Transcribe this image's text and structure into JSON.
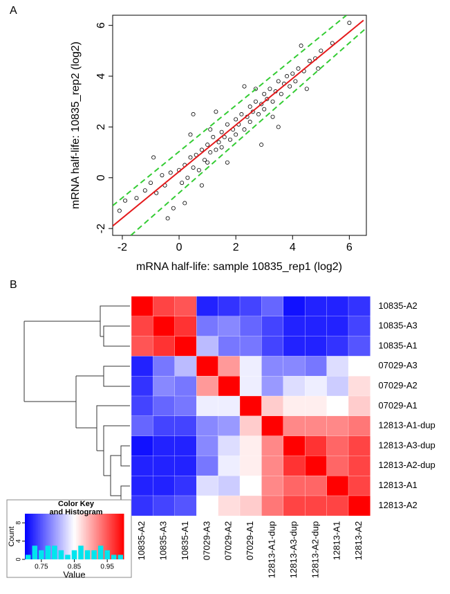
{
  "chart_data": [
    {
      "type": "scatter",
      "panel_label": "A",
      "xlabel": "mRNA half-life: sample 10835_rep1 (log2)",
      "ylabel": "mRNA half-life: 10835_rep2 (log2)",
      "xlim": [
        -2.34,
        6.6
      ],
      "ylim": [
        -2.27,
        6.4
      ],
      "xticks": [
        -2,
        0,
        2,
        4,
        6
      ],
      "yticks": [
        -2,
        0,
        2,
        4,
        6
      ],
      "color": "#000000",
      "x": [
        -1.9,
        -1.5,
        -1.2,
        -1.0,
        -0.8,
        -0.6,
        -0.5,
        -0.3,
        -0.2,
        0,
        0.1,
        0.2,
        0.3,
        0.4,
        0.5,
        0.6,
        0.7,
        0.8,
        0.9,
        1.0,
        1.0,
        1.1,
        1.2,
        1.3,
        1.4,
        1.5,
        1.5,
        1.6,
        1.7,
        1.8,
        1.9,
        2.0,
        2.0,
        2.1,
        2.2,
        2.3,
        2.4,
        2.5,
        2.5,
        2.6,
        2.7,
        2.8,
        2.9,
        3.0,
        3.0,
        3.1,
        3.2,
        3.3,
        3.4,
        3.5,
        3.6,
        3.7,
        3.8,
        3.9,
        4.0,
        4.1,
        4.2,
        4.4,
        4.6,
        4.8,
        5.0,
        5.4,
        6.0,
        0.5,
        1.3,
        2.9,
        3.5,
        -0.4,
        0.2,
        1.7,
        0.8,
        2.3,
        4.3,
        1.1,
        2.7,
        3.3,
        4.5,
        -2.1,
        4.9,
        0.4,
        -0.9
      ],
      "y": [
        -0.9,
        -0.8,
        -0.5,
        -0.2,
        -0.6,
        0.1,
        -0.3,
        0.2,
        -1.2,
        0.3,
        -0.2,
        0.5,
        0.0,
        0.8,
        0.4,
        0.9,
        0.3,
        1.1,
        0.7,
        1.3,
        0.6,
        1.0,
        1.6,
        1.1,
        1.4,
        1.8,
        1.2,
        1.6,
        2.1,
        1.5,
        1.9,
        2.3,
        1.7,
        2.1,
        2.5,
        1.9,
        2.4,
        2.8,
        2.2,
        2.6,
        3.0,
        2.5,
        2.9,
        3.3,
        2.7,
        3.1,
        3.5,
        3.0,
        3.4,
        3.8,
        3.3,
        3.7,
        4.0,
        3.6,
        4.1,
        3.8,
        4.3,
        4.2,
        4.6,
        4.7,
        5.0,
        5.3,
        6.1,
        2.5,
        2.6,
        1.3,
        2.0,
        -1.6,
        -1.0,
        0.6,
        -0.3,
        3.6,
        5.2,
        1.9,
        3.5,
        2.4,
        3.5,
        -1.3,
        4.3,
        1.7,
        0.8
      ],
      "lines": [
        {
          "color": "#e41a1c",
          "dash": false,
          "x": [
            -2.34,
            6.5
          ],
          "y": [
            -1.9,
            6.2
          ]
        },
        {
          "color": "#33cc33",
          "dash": true,
          "x": [
            -2.34,
            5.9
          ],
          "y": [
            -1.1,
            6.4
          ]
        },
        {
          "color": "#33cc33",
          "dash": true,
          "x": [
            -1.7,
            6.6
          ],
          "y": [
            -2.27,
            5.9
          ]
        }
      ]
    },
    {
      "type": "heatmap",
      "panel_label": "B",
      "row_labels": [
        "10835-A2",
        "10835-A3",
        "10835-A1",
        "07029-A3",
        "07029-A2",
        "07029-A1",
        "12813-A1-dup",
        "12813-A3-dup",
        "12813-A2-dup",
        "12813-A1",
        "12813-A2"
      ],
      "col_labels": [
        "10835-A2",
        "10835-A3",
        "10835-A1",
        "07029-A3",
        "07029-A2",
        "07029-A1",
        "12813-A1-dup",
        "12813-A3-dup",
        "12813-A2-dup",
        "12813-A1",
        "12813-A2"
      ],
      "values": [
        [
          1,
          0.96,
          0.95,
          0.72,
          0.73,
          0.74,
          0.76,
          0.71,
          0.72,
          0.72,
          0.73
        ],
        [
          0.96,
          1,
          0.97,
          0.77,
          0.78,
          0.76,
          0.74,
          0.72,
          0.72,
          0.72,
          0.74
        ],
        [
          0.95,
          0.97,
          1,
          0.81,
          0.77,
          0.77,
          0.74,
          0.72,
          0.72,
          0.73,
          0.75
        ],
        [
          0.72,
          0.77,
          0.81,
          1,
          0.91,
          0.84,
          0.78,
          0.78,
          0.77,
          0.83,
          0.85
        ],
        [
          0.73,
          0.78,
          0.77,
          0.91,
          1,
          0.84,
          0.79,
          0.83,
          0.84,
          0.82,
          0.87
        ],
        [
          0.74,
          0.76,
          0.77,
          0.84,
          0.84,
          1,
          0.88,
          0.86,
          0.86,
          0.85,
          0.88
        ],
        [
          0.76,
          0.74,
          0.74,
          0.78,
          0.79,
          0.88,
          1,
          0.92,
          0.92,
          0.92,
          0.93
        ],
        [
          0.71,
          0.72,
          0.72,
          0.78,
          0.83,
          0.86,
          0.92,
          1,
          0.97,
          0.94,
          0.96
        ],
        [
          0.72,
          0.72,
          0.72,
          0.77,
          0.84,
          0.86,
          0.92,
          0.97,
          1,
          0.94,
          0.96
        ],
        [
          0.72,
          0.72,
          0.73,
          0.83,
          0.82,
          0.85,
          0.92,
          0.94,
          0.94,
          1,
          0.96
        ],
        [
          0.73,
          0.74,
          0.75,
          0.85,
          0.87,
          0.88,
          0.93,
          0.96,
          0.96,
          0.96,
          1
        ]
      ],
      "colors": [
        "#0000ff",
        "#ffffff",
        "#ff0000"
      ],
      "clim": [
        0.7,
        1.0
      ],
      "color_key": {
        "title": [
          "Color Key",
          "and Histogram"
        ],
        "xlabel": "Value",
        "ylabel": "Count",
        "xlim": [
          0.7,
          1.0
        ],
        "xticks": [
          0.75,
          0.85,
          0.95
        ],
        "ylim": [
          0,
          10
        ],
        "yticks": [
          0,
          4,
          8
        ],
        "bins": [
          0.7,
          0.72,
          0.74,
          0.76,
          0.78,
          0.8,
          0.82,
          0.84,
          0.86,
          0.88,
          0.9,
          0.92,
          0.94,
          0.96,
          0.98,
          1.0
        ],
        "counts": [
          1,
          3,
          2,
          3,
          3,
          2,
          1,
          2,
          3,
          2,
          2,
          3,
          2,
          1,
          1
        ],
        "color": "#00e5ee"
      }
    }
  ]
}
